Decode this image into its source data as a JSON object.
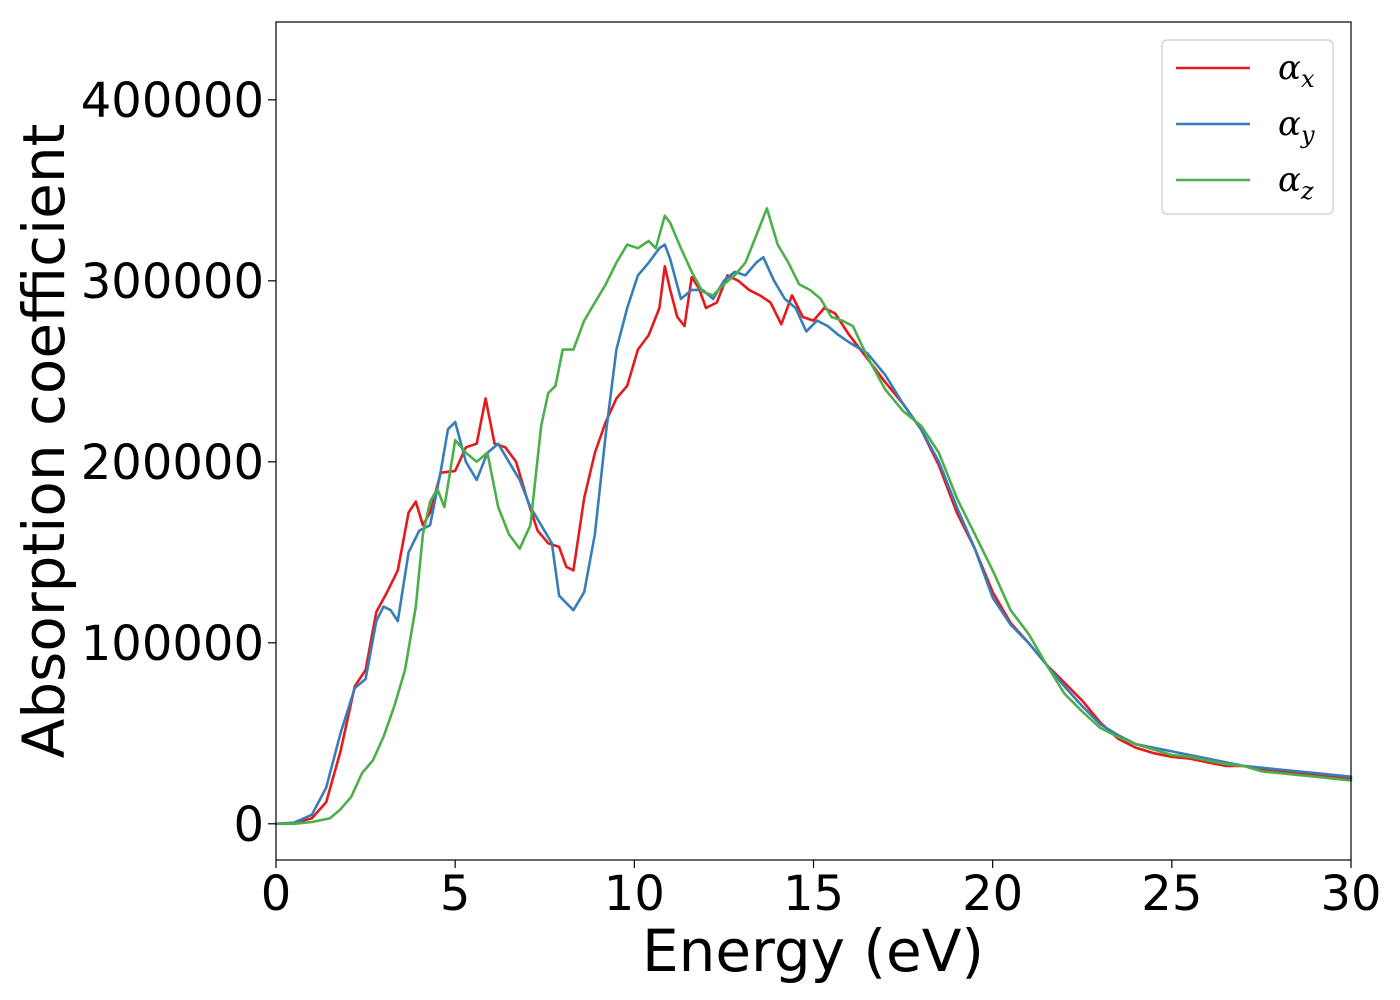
{
  "chart_data": {
    "type": "line",
    "title": "",
    "xlabel": "Energy (eV)",
    "ylabel": "Absorption coefficient",
    "xlim": [
      0,
      30
    ],
    "ylim": [
      -20000,
      443000
    ],
    "xticks": [
      0,
      5,
      10,
      15,
      20,
      25,
      30
    ],
    "yticks": [
      0,
      100000,
      200000,
      300000,
      400000
    ],
    "xtick_labels": [
      "0",
      "5",
      "10",
      "15",
      "20",
      "25",
      "30"
    ],
    "ytick_labels": [
      "0",
      "100000",
      "200000",
      "300000",
      "400000"
    ],
    "grid": false,
    "legend_position": "top-right",
    "series": [
      {
        "name": "α_x",
        "symbol": "α",
        "subscript": "x",
        "color": "#e41a1c",
        "x": [
          0,
          0.5,
          1.0,
          1.4,
          1.8,
          2.2,
          2.5,
          2.8,
          3.1,
          3.4,
          3.7,
          3.9,
          4.1,
          4.3,
          4.6,
          5.0,
          5.3,
          5.6,
          5.85,
          6.1,
          6.4,
          6.7,
          7.0,
          7.3,
          7.6,
          7.9,
          8.1,
          8.3,
          8.6,
          8.9,
          9.2,
          9.5,
          9.8,
          10.1,
          10.4,
          10.7,
          10.85,
          11.0,
          11.2,
          11.4,
          11.6,
          11.8,
          12.0,
          12.3,
          12.6,
          12.9,
          13.2,
          13.5,
          13.8,
          14.1,
          14.4,
          14.7,
          15.0,
          15.3,
          15.6,
          16.0,
          16.5,
          17.0,
          17.5,
          18.0,
          18.5,
          19.0,
          19.5,
          20.0,
          20.5,
          21.0,
          21.5,
          22.0,
          22.5,
          23.0,
          23.5,
          24.0,
          24.5,
          25.0,
          25.5,
          26.0,
          26.5,
          27.0,
          27.5,
          28.0,
          28.5,
          29.0,
          29.5,
          30.0
        ],
        "values": [
          0,
          500,
          3000,
          12000,
          40000,
          76000,
          85000,
          117000,
          128000,
          140000,
          172000,
          178000,
          165000,
          172000,
          194000,
          195000,
          208000,
          210000,
          235000,
          210000,
          208000,
          200000,
          180000,
          162000,
          155000,
          153000,
          142000,
          140000,
          180000,
          205000,
          222000,
          235000,
          242000,
          262000,
          270000,
          285000,
          308000,
          295000,
          280000,
          275000,
          302000,
          296000,
          285000,
          288000,
          303000,
          300000,
          295000,
          292000,
          288000,
          276000,
          292000,
          280000,
          278000,
          285000,
          282000,
          270000,
          257000,
          244000,
          232000,
          218000,
          198000,
          172000,
          152000,
          128000,
          111000,
          100000,
          88000,
          78000,
          68000,
          56000,
          47000,
          42000,
          39000,
          37000,
          36000,
          34000,
          32000,
          32000,
          30000,
          29000,
          28000,
          27000,
          26000,
          25000
        ]
      },
      {
        "name": "α_y",
        "symbol": "α",
        "subscript": "y",
        "color": "#377eb8",
        "x": [
          0,
          0.5,
          1.0,
          1.4,
          1.8,
          2.2,
          2.5,
          2.8,
          3.0,
          3.2,
          3.4,
          3.7,
          4.0,
          4.3,
          4.6,
          4.8,
          5.0,
          5.3,
          5.6,
          5.9,
          6.2,
          6.5,
          6.8,
          7.1,
          7.4,
          7.7,
          7.9,
          8.1,
          8.3,
          8.6,
          8.9,
          9.2,
          9.5,
          9.8,
          10.1,
          10.4,
          10.7,
          10.85,
          11.0,
          11.3,
          11.6,
          11.9,
          12.2,
          12.5,
          12.8,
          13.1,
          13.4,
          13.6,
          13.9,
          14.2,
          14.5,
          14.8,
          15.1,
          15.4,
          15.7,
          16.0,
          16.5,
          17.0,
          17.5,
          18.0,
          18.5,
          19.0,
          19.5,
          20.0,
          20.5,
          21.0,
          21.5,
          22.0,
          22.5,
          23.0,
          23.5,
          24.0,
          24.5,
          25.0,
          25.5,
          26.0,
          26.5,
          27.0,
          27.5,
          28.0,
          28.5,
          29.0,
          29.5,
          30.0
        ],
        "values": [
          0,
          600,
          5000,
          20000,
          50000,
          75000,
          80000,
          112000,
          120000,
          118000,
          112000,
          150000,
          162000,
          165000,
          195000,
          218000,
          222000,
          200000,
          190000,
          205000,
          210000,
          200000,
          190000,
          175000,
          165000,
          155000,
          126000,
          122000,
          118000,
          128000,
          160000,
          215000,
          262000,
          285000,
          303000,
          310000,
          318000,
          320000,
          312000,
          290000,
          295000,
          295000,
          290000,
          300000,
          305000,
          303000,
          310000,
          313000,
          300000,
          290000,
          285000,
          272000,
          278000,
          275000,
          270000,
          266000,
          260000,
          248000,
          232000,
          218000,
          200000,
          175000,
          152000,
          125000,
          110000,
          100000,
          88000,
          76000,
          65000,
          55000,
          49000,
          44000,
          42000,
          40000,
          38000,
          36000,
          34000,
          32000,
          31000,
          30000,
          29000,
          28000,
          27000,
          26000
        ]
      },
      {
        "name": "α_z",
        "symbol": "α",
        "subscript": "z",
        "color": "#4daf4a",
        "x": [
          0,
          0.5,
          1.0,
          1.5,
          1.8,
          2.1,
          2.4,
          2.7,
          3.0,
          3.3,
          3.6,
          3.9,
          4.1,
          4.3,
          4.5,
          4.7,
          5.0,
          5.3,
          5.6,
          5.9,
          6.2,
          6.5,
          6.8,
          7.1,
          7.4,
          7.6,
          7.8,
          8.0,
          8.3,
          8.6,
          8.9,
          9.2,
          9.5,
          9.8,
          10.1,
          10.4,
          10.6,
          10.85,
          11.0,
          11.3,
          11.6,
          11.9,
          12.2,
          12.5,
          12.8,
          13.1,
          13.4,
          13.7,
          14.0,
          14.3,
          14.6,
          14.9,
          15.2,
          15.5,
          15.8,
          16.1,
          16.5,
          17.0,
          17.5,
          18.0,
          18.5,
          19.0,
          19.5,
          20.0,
          20.5,
          21.0,
          21.5,
          22.0,
          22.5,
          23.0,
          23.5,
          24.0,
          24.5,
          25.0,
          25.5,
          26.0,
          26.5,
          27.0,
          27.5,
          28.0,
          28.5,
          29.0,
          29.5,
          30.0
        ],
        "values": [
          0,
          0,
          1000,
          3000,
          8000,
          15000,
          28000,
          35000,
          48000,
          65000,
          85000,
          120000,
          160000,
          178000,
          185000,
          175000,
          212000,
          205000,
          200000,
          205000,
          175000,
          160000,
          152000,
          165000,
          220000,
          238000,
          242000,
          262000,
          262000,
          278000,
          288000,
          298000,
          310000,
          320000,
          318000,
          322000,
          318000,
          336000,
          332000,
          318000,
          305000,
          294000,
          292000,
          298000,
          303000,
          310000,
          325000,
          340000,
          320000,
          310000,
          298000,
          295000,
          290000,
          280000,
          278000,
          275000,
          258000,
          240000,
          228000,
          220000,
          205000,
          180000,
          160000,
          140000,
          118000,
          105000,
          88000,
          72000,
          62000,
          53000,
          48000,
          44000,
          41000,
          38000,
          37000,
          35000,
          33000,
          32000,
          29000,
          28000,
          27000,
          26000,
          25000,
          24000
        ]
      }
    ]
  }
}
